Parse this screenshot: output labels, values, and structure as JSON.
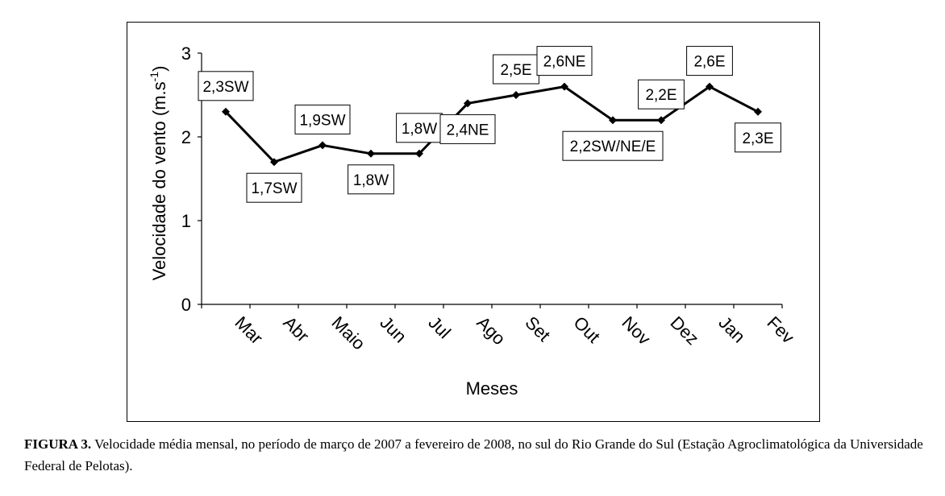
{
  "chart_data": {
    "type": "line",
    "xlabel": "Meses",
    "ylabel": "Velocidade do vento (m.s",
    "ylabel_superscript": "-1",
    "ylabel_suffix": ")",
    "ylim": [
      0,
      3
    ],
    "yticks": [
      0,
      1,
      2,
      3
    ],
    "categories": [
      "Mar",
      "Abr",
      "Maio",
      "Jun",
      "Jul",
      "Ago",
      "Set",
      "Out",
      "Nov",
      "Dez",
      "Jan",
      "Fev"
    ],
    "series": [
      {
        "name": "Velocidade média mensal",
        "values": [
          2.3,
          1.7,
          1.9,
          1.8,
          1.8,
          2.4,
          2.5,
          2.6,
          2.2,
          2.2,
          2.6,
          2.3
        ]
      }
    ],
    "annotations": [
      "2,3SW",
      "1,7SW",
      "1,9SW",
      "1,8W",
      "1,8W",
      "2,4NE",
      "2,5E",
      "2,6NE",
      "2,2SW/NE/E",
      "2,2E",
      "2,6E",
      "2,3E"
    ],
    "grid": false,
    "legend": "none"
  },
  "caption": {
    "label": "FIGURA 3.",
    "text": " Velocidade média mensal, no período de março de 2007 a fevereiro de 2008, no sul do Rio Grande do Sul (Estação Agroclimatológica da Universidade Federal de Pelotas)."
  }
}
